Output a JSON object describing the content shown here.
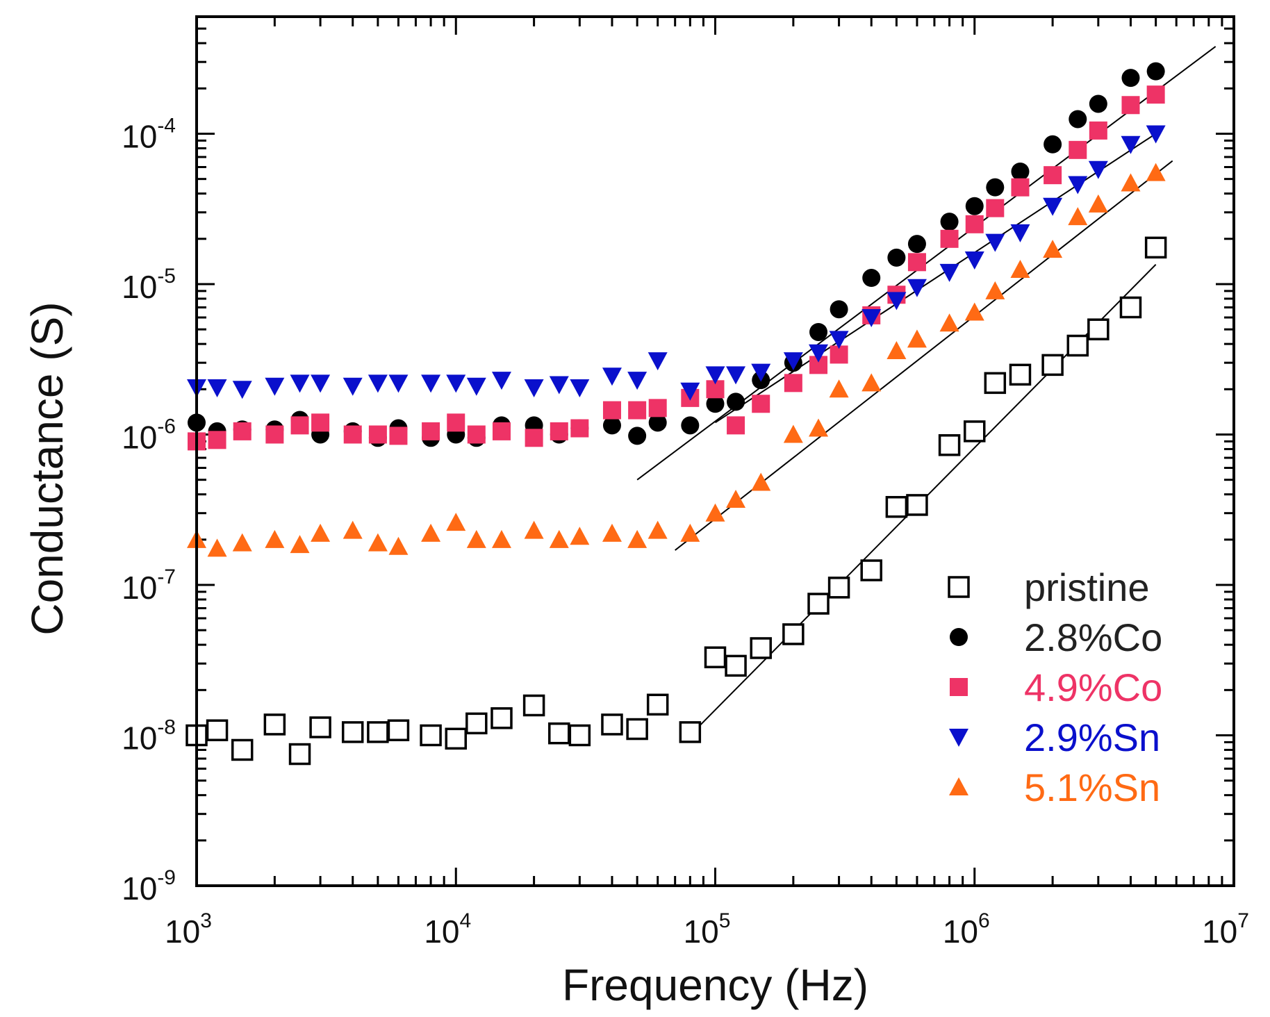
{
  "chart_data": {
    "type": "scatter",
    "xscale": "log",
    "yscale": "log",
    "xlabel": "Frequency (Hz)",
    "ylabel": "Conductance (S)",
    "xlim": [
      1000,
      10000000
    ],
    "ylim": [
      1e-09,
      0.0006
    ],
    "x_ticks": [
      {
        "base": "10",
        "exp": "3",
        "value": 1000
      },
      {
        "base": "10",
        "exp": "4",
        "value": 10000
      },
      {
        "base": "10",
        "exp": "5",
        "value": 100000
      },
      {
        "base": "10",
        "exp": "6",
        "value": 1000000
      },
      {
        "base": "10",
        "exp": "7",
        "value": 10000000
      }
    ],
    "y_ticks": [
      {
        "base": "10",
        "exp": "-9",
        "value": 1e-09
      },
      {
        "base": "10",
        "exp": "-8",
        "value": 1e-08
      },
      {
        "base": "10",
        "exp": "-7",
        "value": 1e-07
      },
      {
        "base": "10",
        "exp": "-6",
        "value": 1e-06
      },
      {
        "base": "10",
        "exp": "-5",
        "value": 1e-05
      },
      {
        "base": "10",
        "exp": "-4",
        "value": 0.0001
      }
    ],
    "legend_position": "bottom-right",
    "series": [
      {
        "name": "pristine",
        "marker": "open-square",
        "color": "#000000",
        "label_color": "#222222",
        "points": [
          [
            1000,
            1e-08
          ],
          [
            1200,
            1.08e-08
          ],
          [
            1500,
            8e-09
          ],
          [
            2000,
            1.18e-08
          ],
          [
            2500,
            7.5e-09
          ],
          [
            3000,
            1.13e-08
          ],
          [
            4000,
            1.05e-08
          ],
          [
            5000,
            1.05e-08
          ],
          [
            6000,
            1.08e-08
          ],
          [
            8000,
            1e-08
          ],
          [
            10000,
            9.5e-09
          ],
          [
            12000,
            1.2e-08
          ],
          [
            15000,
            1.3e-08
          ],
          [
            20000,
            1.58e-08
          ],
          [
            25000,
            1.03e-08
          ],
          [
            30000,
            1e-08
          ],
          [
            40000,
            1.18e-08
          ],
          [
            50000,
            1.1e-08
          ],
          [
            60000,
            1.6e-08
          ],
          [
            80000,
            1.05e-08
          ],
          [
            100000,
            3.3e-08
          ],
          [
            120000,
            2.9e-08
          ],
          [
            150000,
            3.8e-08
          ],
          [
            200000,
            4.7e-08
          ],
          [
            250000,
            7.5e-08
          ],
          [
            300000,
            9.6e-08
          ],
          [
            400000,
            1.25e-07
          ],
          [
            500000,
            3.3e-07
          ],
          [
            600000,
            3.4e-07
          ],
          [
            800000,
            8.5e-07
          ],
          [
            1000000,
            1.05e-06
          ],
          [
            1200000,
            2.2e-06
          ],
          [
            1500000,
            2.5e-06
          ],
          [
            2000000,
            2.9e-06
          ],
          [
            2500000,
            3.9e-06
          ],
          [
            3000000,
            5e-06
          ],
          [
            4000000,
            7e-06
          ],
          [
            5000000,
            1.75e-05
          ]
        ]
      },
      {
        "name": "2.8%Co",
        "marker": "filled-circle",
        "color": "#000000",
        "label_color": "#222222",
        "points": [
          [
            1000,
            1.2e-06
          ],
          [
            1200,
            1.05e-06
          ],
          [
            1500,
            1.08e-06
          ],
          [
            2000,
            1.08e-06
          ],
          [
            2500,
            1.25e-06
          ],
          [
            3000,
            1e-06
          ],
          [
            4000,
            1.05e-06
          ],
          [
            5000,
            9.5e-07
          ],
          [
            6000,
            1.1e-06
          ],
          [
            8000,
            9.5e-07
          ],
          [
            10000,
            1e-06
          ],
          [
            12000,
            9.5e-07
          ],
          [
            15000,
            1.15e-06
          ],
          [
            20000,
            1.15e-06
          ],
          [
            25000,
            1e-06
          ],
          [
            30000,
            1.1e-06
          ],
          [
            40000,
            1.15e-06
          ],
          [
            50000,
            9.8e-07
          ],
          [
            60000,
            1.2e-06
          ],
          [
            80000,
            1.15e-06
          ],
          [
            100000,
            1.6e-06
          ],
          [
            120000,
            1.65e-06
          ],
          [
            150000,
            2.3e-06
          ],
          [
            200000,
            3e-06
          ],
          [
            250000,
            4.8e-06
          ],
          [
            300000,
            6.8e-06
          ],
          [
            400000,
            1.1e-05
          ],
          [
            500000,
            1.5e-05
          ],
          [
            600000,
            1.85e-05
          ],
          [
            800000,
            2.6e-05
          ],
          [
            1000000,
            3.3e-05
          ],
          [
            1200000,
            4.4e-05
          ],
          [
            1500000,
            5.6e-05
          ],
          [
            2000000,
            8.5e-05
          ],
          [
            2500000,
            0.000125
          ],
          [
            3000000,
            0.000158
          ],
          [
            4000000,
            0.000235
          ],
          [
            5000000,
            0.00026
          ]
        ]
      },
      {
        "name": "4.9%Co",
        "marker": "filled-square",
        "color": "#ee3366",
        "label_color": "#ee3366",
        "points": [
          [
            1000,
            9e-07
          ],
          [
            1200,
            9.2e-07
          ],
          [
            1500,
            1.05e-06
          ],
          [
            2000,
            1e-06
          ],
          [
            2500,
            1.15e-06
          ],
          [
            3000,
            1.2e-06
          ],
          [
            4000,
            1e-06
          ],
          [
            5000,
            1e-06
          ],
          [
            6000,
            9.8e-07
          ],
          [
            8000,
            1.05e-06
          ],
          [
            10000,
            1.2e-06
          ],
          [
            12000,
            1e-06
          ],
          [
            15000,
            1.05e-06
          ],
          [
            20000,
            9.5e-07
          ],
          [
            25000,
            1.05e-06
          ],
          [
            30000,
            1.1e-06
          ],
          [
            40000,
            1.45e-06
          ],
          [
            50000,
            1.45e-06
          ],
          [
            60000,
            1.5e-06
          ],
          [
            80000,
            1.75e-06
          ],
          [
            100000,
            2e-06
          ],
          [
            120000,
            1.15e-06
          ],
          [
            150000,
            1.6e-06
          ],
          [
            200000,
            2.2e-06
          ],
          [
            250000,
            2.9e-06
          ],
          [
            300000,
            3.4e-06
          ],
          [
            400000,
            6.2e-06
          ],
          [
            500000,
            8.5e-06
          ],
          [
            600000,
            1.4e-05
          ],
          [
            800000,
            2e-05
          ],
          [
            1000000,
            2.5e-05
          ],
          [
            1200000,
            3.2e-05
          ],
          [
            1500000,
            4.4e-05
          ],
          [
            2000000,
            5.3e-05
          ],
          [
            2500000,
            7.8e-05
          ],
          [
            3000000,
            0.000105
          ],
          [
            4000000,
            0.000155
          ],
          [
            5000000,
            0.000182
          ]
        ]
      },
      {
        "name": "2.9%Sn",
        "marker": "filled-triangle-down",
        "color": "#0a10cc",
        "label_color": "#0a10cc",
        "points": [
          [
            1000,
            2.05e-06
          ],
          [
            1200,
            2.05e-06
          ],
          [
            1500,
            2e-06
          ],
          [
            2000,
            2.1e-06
          ],
          [
            2500,
            2.2e-06
          ],
          [
            3000,
            2.2e-06
          ],
          [
            4000,
            2.1e-06
          ],
          [
            5000,
            2.2e-06
          ],
          [
            6000,
            2.2e-06
          ],
          [
            8000,
            2.2e-06
          ],
          [
            10000,
            2.2e-06
          ],
          [
            12000,
            2.1e-06
          ],
          [
            15000,
            2.3e-06
          ],
          [
            20000,
            2.05e-06
          ],
          [
            25000,
            2.15e-06
          ],
          [
            30000,
            2.05e-06
          ],
          [
            40000,
            2.45e-06
          ],
          [
            50000,
            2.3e-06
          ],
          [
            60000,
            3.1e-06
          ],
          [
            80000,
            1.95e-06
          ],
          [
            100000,
            2.5e-06
          ],
          [
            120000,
            2.5e-06
          ],
          [
            150000,
            2.6e-06
          ],
          [
            200000,
            3.1e-06
          ],
          [
            250000,
            3.5e-06
          ],
          [
            300000,
            4.3e-06
          ],
          [
            400000,
            6e-06
          ],
          [
            500000,
            7.8e-06
          ],
          [
            600000,
            9.5e-06
          ],
          [
            800000,
            1.2e-05
          ],
          [
            1000000,
            1.45e-05
          ],
          [
            1200000,
            1.9e-05
          ],
          [
            1500000,
            2.2e-05
          ],
          [
            2000000,
            3.3e-05
          ],
          [
            2500000,
            4.6e-05
          ],
          [
            3000000,
            5.8e-05
          ],
          [
            4000000,
            8.5e-05
          ],
          [
            5000000,
            0.0001
          ]
        ]
      },
      {
        "name": "5.1%Sn",
        "marker": "filled-triangle-up",
        "color": "#ff6a14",
        "label_color": "#ff6a14",
        "points": [
          [
            1000,
            2e-07
          ],
          [
            1200,
            1.75e-07
          ],
          [
            1500,
            1.9e-07
          ],
          [
            2000,
            2e-07
          ],
          [
            2500,
            1.85e-07
          ],
          [
            3000,
            2.2e-07
          ],
          [
            4000,
            2.3e-07
          ],
          [
            5000,
            1.9e-07
          ],
          [
            6000,
            1.8e-07
          ],
          [
            8000,
            2.2e-07
          ],
          [
            10000,
            2.6e-07
          ],
          [
            12000,
            2e-07
          ],
          [
            15000,
            2e-07
          ],
          [
            20000,
            2.3e-07
          ],
          [
            25000,
            2e-07
          ],
          [
            30000,
            2.1e-07
          ],
          [
            40000,
            2.2e-07
          ],
          [
            50000,
            2e-07
          ],
          [
            60000,
            2.3e-07
          ],
          [
            80000,
            2.2e-07
          ],
          [
            100000,
            3e-07
          ],
          [
            120000,
            3.7e-07
          ],
          [
            150000,
            4.8e-07
          ],
          [
            200000,
            1e-06
          ],
          [
            250000,
            1.1e-06
          ],
          [
            300000,
            2e-06
          ],
          [
            400000,
            2.2e-06
          ],
          [
            500000,
            3.6e-06
          ],
          [
            600000,
            4.3e-06
          ],
          [
            800000,
            5.5e-06
          ],
          [
            1000000,
            6.5e-06
          ],
          [
            1200000,
            9e-06
          ],
          [
            1500000,
            1.25e-05
          ],
          [
            2000000,
            1.7e-05
          ],
          [
            2500000,
            2.8e-05
          ],
          [
            3000000,
            3.4e-05
          ],
          [
            4000000,
            4.7e-05
          ],
          [
            5000000,
            5.5e-05
          ]
        ]
      }
    ],
    "fit_lines": [
      {
        "series": "2.8%Co",
        "from": [
          50000,
          5e-07
        ],
        "to": [
          8500000,
          0.00038
        ]
      },
      {
        "series": "2.9%Sn",
        "from": [
          100000,
          1.2e-06
        ],
        "to": [
          5000000,
          0.0001
        ]
      },
      {
        "series": "5.1%Sn",
        "from": [
          70000,
          1.7e-07
        ],
        "to": [
          5800000,
          6.6e-05
        ]
      },
      {
        "series": "pristine",
        "from": [
          80000,
          1e-08
        ],
        "to": [
          5000000,
          1.35e-05
        ]
      }
    ]
  }
}
